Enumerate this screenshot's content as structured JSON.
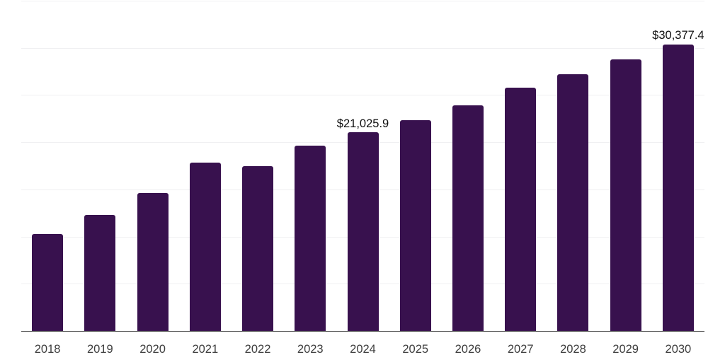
{
  "chart_data": {
    "type": "bar",
    "title": "",
    "xlabel": "",
    "ylabel": "",
    "categories": [
      "2018",
      "2019",
      "2020",
      "2021",
      "2022",
      "2023",
      "2024",
      "2025",
      "2026",
      "2027",
      "2028",
      "2029",
      "2030"
    ],
    "values": [
      10290,
      12290,
      14590,
      17810,
      17440,
      19660,
      21025.9,
      22320,
      23910,
      25790,
      27210,
      28760,
      30377.4
    ],
    "point_labels": [
      "",
      "",
      "",
      "",
      "",
      "",
      "$21,025.9",
      "",
      "",
      "",
      "",
      "",
      "$30,377.4"
    ],
    "ylim": [
      0,
      35000
    ],
    "grid_step": 5000,
    "grid": true,
    "legend": false,
    "bar_color": "#38114e"
  },
  "colors": {
    "bar": "#38114e",
    "gridline": "#f0f0f2",
    "axis_line": "#333333",
    "tick_label": "#3d3d3d",
    "data_label": "#0f0f0f",
    "background": "#ffffff"
  }
}
